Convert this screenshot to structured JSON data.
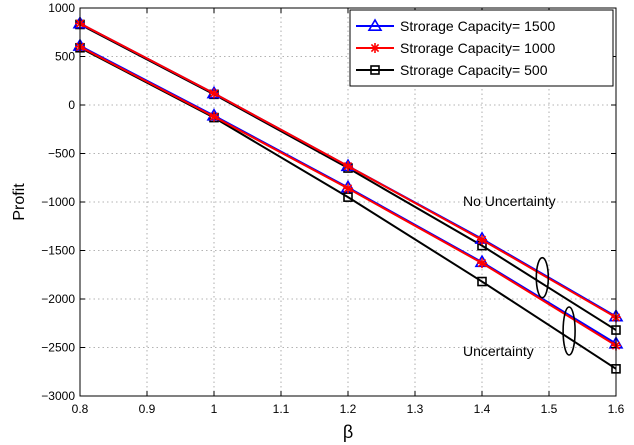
{
  "chart_data": {
    "type": "line",
    "xlabel": "β",
    "ylabel": "Profit",
    "xlim": [
      0.8,
      1.6
    ],
    "ylim": [
      -3000,
      1000
    ],
    "xticks": [
      0.8,
      0.9,
      1,
      1.1,
      1.2,
      1.3,
      1.4,
      1.5,
      1.6
    ],
    "xtick_labels": [
      "0.8",
      "0.9",
      "1",
      "1.1",
      "1.2",
      "1.3",
      "1.4",
      "1.5",
      "1.6"
    ],
    "yticks": [
      -3000,
      -2500,
      -2000,
      -1500,
      -1000,
      -500,
      0,
      500,
      1000
    ],
    "ytick_labels": [
      "−3000",
      "−2500",
      "−2000",
      "−1500",
      "−1000",
      "−500",
      "0",
      "500",
      "1000"
    ],
    "grid": true,
    "legend_position": "top-right",
    "x": [
      0.8,
      1.0,
      1.2,
      1.4,
      1.6
    ],
    "series": [
      {
        "name": "Strorage Capacity= 1500",
        "case": "No Uncertainty",
        "color": "#0000ff",
        "marker": "triangle",
        "values": [
          840,
          120,
          -630,
          -1380,
          -2180
        ]
      },
      {
        "name": "Strorage Capacity= 1000",
        "case": "No Uncertainty",
        "color": "#ff0000",
        "marker": "asterisk",
        "values": [
          840,
          120,
          -630,
          -1390,
          -2190
        ]
      },
      {
        "name": "Strorage Capacity= 500",
        "case": "No Uncertainty",
        "color": "#000000",
        "marker": "square",
        "values": [
          830,
          110,
          -650,
          -1450,
          -2320
        ]
      },
      {
        "name": "Strorage Capacity= 1500",
        "case": "Uncertainty",
        "color": "#0000ff",
        "marker": "triangle",
        "values": [
          610,
          -110,
          -850,
          -1620,
          -2460
        ]
      },
      {
        "name": "Strorage Capacity= 1000",
        "case": "Uncertainty",
        "color": "#ff0000",
        "marker": "asterisk",
        "values": [
          600,
          -120,
          -860,
          -1630,
          -2480
        ]
      },
      {
        "name": "Strorage Capacity= 500",
        "case": "Uncertainty",
        "color": "#000000",
        "marker": "square",
        "values": [
          590,
          -130,
          -950,
          -1820,
          -2720
        ]
      }
    ],
    "legend": [
      {
        "label": "Strorage Capacity= 1500",
        "color": "#0000ff",
        "marker": "triangle"
      },
      {
        "label": "Strorage Capacity= 1000",
        "color": "#ff0000",
        "marker": "asterisk"
      },
      {
        "label": "Strorage Capacity= 500",
        "color": "#000000",
        "marker": "square"
      }
    ],
    "annotations": [
      {
        "text": "No Uncertainty",
        "ellipse_center": [
          1.49,
          -1780
        ]
      },
      {
        "text": "Uncertainty",
        "ellipse_center": [
          1.53,
          -2330
        ]
      }
    ]
  }
}
